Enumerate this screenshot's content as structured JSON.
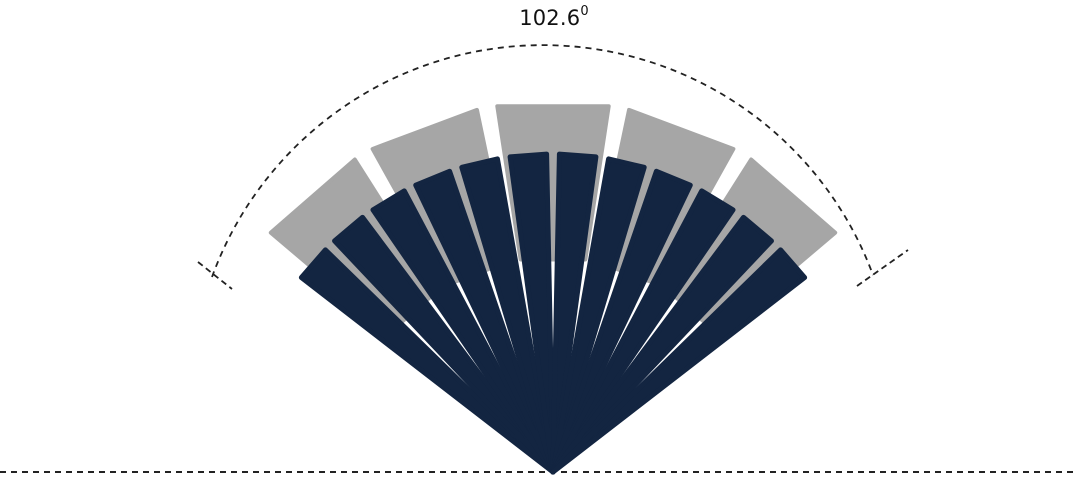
{
  "angle_label": {
    "value": "102.6",
    "unit": "0"
  },
  "fan": {
    "total_angle_deg": 102.6,
    "outer_segments": 5,
    "inner_rays": 12
  },
  "colors": {
    "outer_segment": "#a6a6a6",
    "inner_ray": "#132541",
    "dashed_line": "#222222",
    "label": "#111111"
  }
}
